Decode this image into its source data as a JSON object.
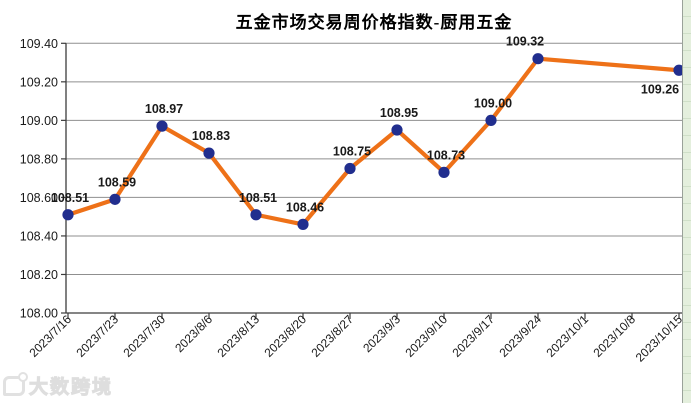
{
  "title": "五金市场交易周价格指数-厨用五金",
  "watermark": {
    "text": "大数跨境"
  },
  "colors": {
    "line": "#ee7118",
    "marker": "#212e8e",
    "grid": "#8f8f8f",
    "axis": "#3c3c3c",
    "tick": "#3c3c3c",
    "label": "#000000",
    "background": "#ffffff",
    "sheet_green": "#e4efdd",
    "sheet_row_line": "#cfdfc8"
  },
  "chart_data": {
    "type": "line",
    "title": "五金市场交易周价格指数-厨用五金",
    "categories": [
      "2023/7/16",
      "2023/7/23",
      "2023/7/30",
      "2023/8/6",
      "2023/8/13",
      "2023/8/20",
      "2023/8/27",
      "2023/9/3",
      "2023/9/10",
      "2023/9/17",
      "2023/9/24",
      "2023/10/1",
      "2023/10/8",
      "2023/10/15"
    ],
    "series": [
      {
        "name": "厨用五金",
        "values": [
          108.51,
          108.59,
          108.97,
          108.83,
          108.51,
          108.46,
          108.75,
          108.95,
          108.73,
          109.0,
          109.32,
          null,
          null,
          109.26
        ]
      }
    ],
    "data_labels": [
      "108.51",
      "108.59",
      "108.97",
      "108.83",
      "108.51",
      "108.46",
      "108.75",
      "108.95",
      "108.73",
      "109.00",
      "109.32",
      null,
      null,
      "109.26"
    ],
    "ylim": [
      108.0,
      109.4
    ],
    "ytick_step": 0.2,
    "ytick_labels": [
      "108.00",
      "108.20",
      "108.40",
      "108.60",
      "108.80",
      "109.00",
      "109.20",
      "109.40"
    ],
    "grid": "horizontal",
    "legend": "none",
    "marker": "circle",
    "xlabel_rotation": -45
  }
}
